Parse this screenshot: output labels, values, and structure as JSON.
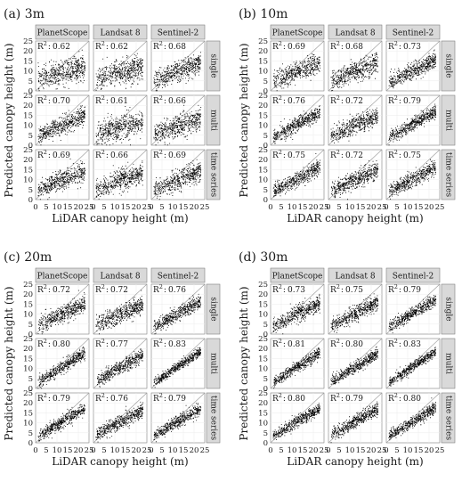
{
  "chart_data": {
    "type": "scatter",
    "xlabel": "LiDAR canopy height (m)",
    "ylabel": "Predicted canopy height (m)",
    "columns": [
      "PlanetScope",
      "Landsat 8",
      "Sentinel-2"
    ],
    "rows": [
      "single",
      "multi",
      "time series"
    ],
    "xlim": [
      0,
      25
    ],
    "ylim": [
      0,
      25
    ],
    "x_ticks": [
      "0",
      "5",
      "10",
      "15",
      "20",
      "25"
    ],
    "y_ticks": [
      "0",
      "5",
      "10",
      "15",
      "20",
      "25"
    ],
    "r2_prefix": "R",
    "r2_sup": "2",
    "grid": true,
    "reference_line": "1:1",
    "panels": [
      {
        "title": "(a) 3m",
        "r2": [
          [
            "0.62",
            "0.62",
            "0.68"
          ],
          [
            "0.70",
            "0.61",
            "0.66"
          ],
          [
            "0.69",
            "0.66",
            "0.69"
          ]
        ]
      },
      {
        "title": "(b) 10m",
        "r2": [
          [
            "0.69",
            "0.68",
            "0.73"
          ],
          [
            "0.76",
            "0.72",
            "0.79"
          ],
          [
            "0.75",
            "0.72",
            "0.75"
          ]
        ]
      },
      {
        "title": "(c) 20m",
        "r2": [
          [
            "0.72",
            "0.72",
            "0.76"
          ],
          [
            "0.80",
            "0.77",
            "0.83"
          ],
          [
            "0.79",
            "0.76",
            "0.79"
          ]
        ]
      },
      {
        "title": "(d) 30m",
        "r2": [
          [
            "0.73",
            "0.75",
            "0.79"
          ],
          [
            "0.81",
            "0.80",
            "0.83"
          ],
          [
            "0.80",
            "0.79",
            "0.80"
          ]
        ]
      }
    ]
  }
}
